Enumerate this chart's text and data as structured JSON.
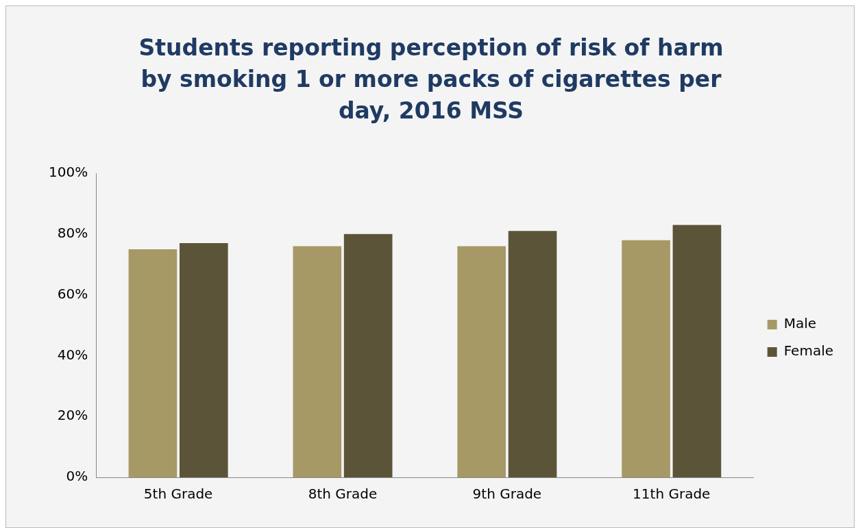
{
  "chart_data": {
    "type": "bar",
    "title": "Students reporting perception of risk of harm by smoking 1 or more packs of cigarettes per day, 2016 MSS",
    "categories": [
      "5th Grade",
      "8th Grade",
      "9th Grade",
      "11th Grade"
    ],
    "series": [
      {
        "name": "Male",
        "color": "#a69966",
        "values": [
          75,
          76,
          76,
          78
        ]
      },
      {
        "name": "Female",
        "color": "#5c5438",
        "values": [
          77,
          80,
          81,
          83
        ]
      }
    ],
    "ylim": [
      0,
      100
    ],
    "yticks": [
      {
        "value": 0,
        "label": "0%"
      },
      {
        "value": 20,
        "label": "20%"
      },
      {
        "value": 40,
        "label": "40%"
      },
      {
        "value": 60,
        "label": "60%"
      },
      {
        "value": 80,
        "label": "80%"
      },
      {
        "value": 100,
        "label": "100%"
      }
    ],
    "grid": false,
    "legend": "right"
  }
}
